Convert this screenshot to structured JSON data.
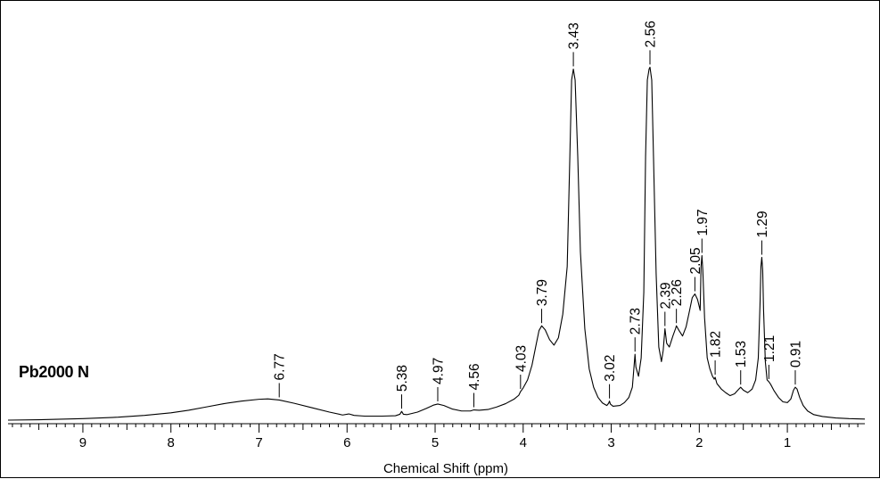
{
  "sample_label": "Pb2000 N",
  "chart_data": {
    "type": "line",
    "xlabel": "Chemical Shift (ppm)",
    "ylabel": "",
    "xlim": [
      9.85,
      0.12
    ],
    "x_reversed": true,
    "x_ticks": [
      9,
      8,
      7,
      6,
      5,
      4,
      3,
      2,
      1
    ],
    "ylim": [
      0,
      1.0
    ],
    "series": [
      {
        "points": [
          [
            9.85,
            0.0
          ],
          [
            9.5,
            0.001
          ],
          [
            9.0,
            0.004
          ],
          [
            8.6,
            0.008
          ],
          [
            8.3,
            0.013
          ],
          [
            8.0,
            0.02
          ],
          [
            7.8,
            0.027
          ],
          [
            7.6,
            0.036
          ],
          [
            7.4,
            0.045
          ],
          [
            7.2,
            0.052
          ],
          [
            7.0,
            0.057
          ],
          [
            6.9,
            0.058
          ],
          [
            6.77,
            0.055
          ],
          [
            6.6,
            0.046
          ],
          [
            6.4,
            0.034
          ],
          [
            6.2,
            0.022
          ],
          [
            6.05,
            0.014
          ],
          [
            5.98,
            0.017
          ],
          [
            5.92,
            0.013
          ],
          [
            5.8,
            0.011
          ],
          [
            5.6,
            0.011
          ],
          [
            5.45,
            0.012
          ],
          [
            5.4,
            0.016
          ],
          [
            5.38,
            0.024
          ],
          [
            5.36,
            0.016
          ],
          [
            5.32,
            0.015
          ],
          [
            5.2,
            0.022
          ],
          [
            5.1,
            0.032
          ],
          [
            5.02,
            0.041
          ],
          [
            4.97,
            0.044
          ],
          [
            4.9,
            0.04
          ],
          [
            4.8,
            0.03
          ],
          [
            4.7,
            0.025
          ],
          [
            4.6,
            0.025
          ],
          [
            4.56,
            0.028
          ],
          [
            4.5,
            0.027
          ],
          [
            4.4,
            0.029
          ],
          [
            4.3,
            0.036
          ],
          [
            4.2,
            0.045
          ],
          [
            4.1,
            0.058
          ],
          [
            4.05,
            0.068
          ],
          [
            4.03,
            0.078
          ],
          [
            4.0,
            0.088
          ],
          [
            3.95,
            0.11
          ],
          [
            3.9,
            0.15
          ],
          [
            3.85,
            0.21
          ],
          [
            3.82,
            0.245
          ],
          [
            3.79,
            0.258
          ],
          [
            3.75,
            0.247
          ],
          [
            3.7,
            0.22
          ],
          [
            3.65,
            0.205
          ],
          [
            3.6,
            0.225
          ],
          [
            3.55,
            0.29
          ],
          [
            3.5,
            0.42
          ],
          [
            3.47,
            0.72
          ],
          [
            3.45,
            0.93
          ],
          [
            3.43,
            0.96
          ],
          [
            3.41,
            0.93
          ],
          [
            3.38,
            0.72
          ],
          [
            3.35,
            0.46
          ],
          [
            3.3,
            0.25
          ],
          [
            3.25,
            0.14
          ],
          [
            3.2,
            0.09
          ],
          [
            3.15,
            0.062
          ],
          [
            3.1,
            0.047
          ],
          [
            3.05,
            0.04
          ],
          [
            3.03,
            0.046
          ],
          [
            3.02,
            0.052
          ],
          [
            3.01,
            0.044
          ],
          [
            2.98,
            0.038
          ],
          [
            2.9,
            0.04
          ],
          [
            2.85,
            0.048
          ],
          [
            2.8,
            0.062
          ],
          [
            2.76,
            0.09
          ],
          [
            2.74,
            0.15
          ],
          [
            2.73,
            0.18
          ],
          [
            2.72,
            0.145
          ],
          [
            2.69,
            0.12
          ],
          [
            2.66,
            0.17
          ],
          [
            2.63,
            0.35
          ],
          [
            2.61,
            0.72
          ],
          [
            2.59,
            0.93
          ],
          [
            2.57,
            0.96
          ],
          [
            2.56,
            0.965
          ],
          [
            2.54,
            0.93
          ],
          [
            2.52,
            0.72
          ],
          [
            2.49,
            0.4
          ],
          [
            2.46,
            0.2
          ],
          [
            2.43,
            0.16
          ],
          [
            2.41,
            0.19
          ],
          [
            2.39,
            0.25
          ],
          [
            2.37,
            0.21
          ],
          [
            2.34,
            0.2
          ],
          [
            2.3,
            0.23
          ],
          [
            2.27,
            0.25
          ],
          [
            2.26,
            0.258
          ],
          [
            2.23,
            0.245
          ],
          [
            2.19,
            0.23
          ],
          [
            2.15,
            0.255
          ],
          [
            2.11,
            0.3
          ],
          [
            2.08,
            0.335
          ],
          [
            2.05,
            0.345
          ],
          [
            2.02,
            0.33
          ],
          [
            1.99,
            0.3
          ],
          [
            1.98,
            0.42
          ],
          [
            1.97,
            0.45
          ],
          [
            1.96,
            0.41
          ],
          [
            1.94,
            0.28
          ],
          [
            1.91,
            0.17
          ],
          [
            1.88,
            0.14
          ],
          [
            1.85,
            0.12
          ],
          [
            1.83,
            0.112
          ],
          [
            1.82,
            0.117
          ],
          [
            1.8,
            0.1
          ],
          [
            1.75,
            0.085
          ],
          [
            1.7,
            0.075
          ],
          [
            1.65,
            0.067
          ],
          [
            1.6,
            0.072
          ],
          [
            1.55,
            0.085
          ],
          [
            1.53,
            0.09
          ],
          [
            1.5,
            0.082
          ],
          [
            1.45,
            0.075
          ],
          [
            1.4,
            0.085
          ],
          [
            1.36,
            0.11
          ],
          [
            1.33,
            0.17
          ],
          [
            1.31,
            0.32
          ],
          [
            1.3,
            0.42
          ],
          [
            1.29,
            0.445
          ],
          [
            1.28,
            0.41
          ],
          [
            1.27,
            0.3
          ],
          [
            1.25,
            0.16
          ],
          [
            1.23,
            0.11
          ],
          [
            1.21,
            0.105
          ],
          [
            1.19,
            0.098
          ],
          [
            1.15,
            0.08
          ],
          [
            1.1,
            0.062
          ],
          [
            1.05,
            0.05
          ],
          [
            1.0,
            0.048
          ],
          [
            0.96,
            0.058
          ],
          [
            0.93,
            0.082
          ],
          [
            0.91,
            0.09
          ],
          [
            0.89,
            0.085
          ],
          [
            0.86,
            0.062
          ],
          [
            0.82,
            0.04
          ],
          [
            0.77,
            0.025
          ],
          [
            0.7,
            0.015
          ],
          [
            0.6,
            0.01
          ],
          [
            0.45,
            0.006
          ],
          [
            0.3,
            0.004
          ],
          [
            0.12,
            0.003
          ]
        ]
      }
    ],
    "peak_labels": [
      {
        "text": "6.77",
        "x": 6.77,
        "y": 0.055
      },
      {
        "text": "5.38",
        "x": 5.38,
        "y": 0.024
      },
      {
        "text": "4.97",
        "x": 4.97,
        "y": 0.044
      },
      {
        "text": "4.56",
        "x": 4.56,
        "y": 0.028
      },
      {
        "text": "4.03",
        "x": 4.03,
        "y": 0.078
      },
      {
        "text": "3.79",
        "x": 3.79,
        "y": 0.258
      },
      {
        "text": "3.43",
        "x": 3.43,
        "y": 0.96
      },
      {
        "text": "3.02",
        "x": 3.02,
        "y": 0.052
      },
      {
        "text": "2.73",
        "x": 2.73,
        "y": 0.18
      },
      {
        "text": "2.56",
        "x": 2.56,
        "y": 0.965
      },
      {
        "text": "2.39",
        "x": 2.39,
        "y": 0.25
      },
      {
        "text": "2.26",
        "x": 2.26,
        "y": 0.258
      },
      {
        "text": "2.05",
        "x": 2.05,
        "y": 0.345
      },
      {
        "text": "1.97",
        "x": 1.97,
        "y": 0.45
      },
      {
        "text": "1.82",
        "x": 1.82,
        "y": 0.117
      },
      {
        "text": "1.53",
        "x": 1.53,
        "y": 0.09
      },
      {
        "text": "1.29",
        "x": 1.29,
        "y": 0.445
      },
      {
        "text": "1.21",
        "x": 1.21,
        "y": 0.105
      },
      {
        "text": "0.91",
        "x": 0.91,
        "y": 0.09
      }
    ],
    "grid": false,
    "line_color": "#000000"
  }
}
